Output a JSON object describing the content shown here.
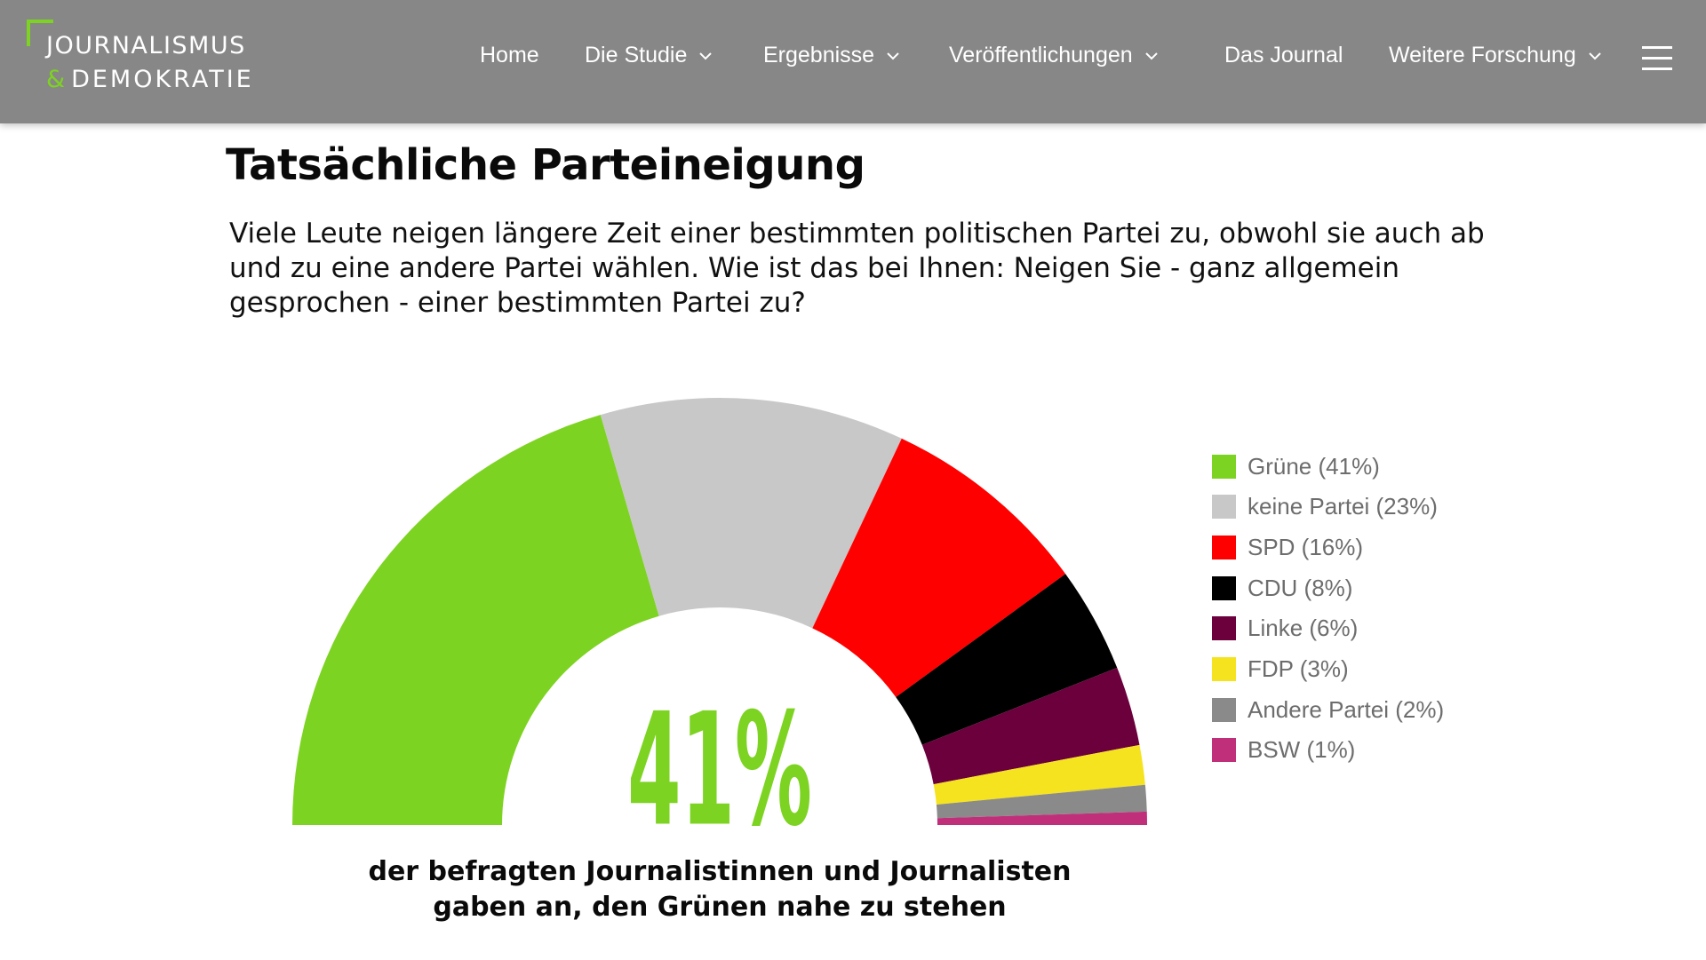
{
  "site": {
    "logo_line1": "JOURNALISMUS",
    "logo_amp": "&",
    "logo_line2": "DEMOKRATIE",
    "accent": "#7dd321"
  },
  "nav": {
    "items": [
      {
        "label": "Home",
        "dropdown": false
      },
      {
        "label": "Die Studie",
        "dropdown": true
      },
      {
        "label": "Ergebnisse",
        "dropdown": true
      },
      {
        "label": "Veröffentlichungen",
        "dropdown": true
      },
      {
        "label": "Das Journal",
        "dropdown": false
      },
      {
        "label": "Weitere Forschung",
        "dropdown": true
      }
    ],
    "menu_icon": "hamburger-icon"
  },
  "page": {
    "title": "Tatsächliche Parteineigung",
    "question": "Viele Leute neigen längere Zeit einer bestimmten politischen Partei zu, obwohl sie auch ab und zu eine andere Partei wählen. Wie ist das bei Ihnen: Neigen Sie - ganz allgemein gesprochen - einer bestimmten Partei zu?",
    "highlight_value": "41%",
    "caption_line1": "der befragten Journalistinnen und Journalisten",
    "caption_line2": "gaben an, den Grünen nahe zu stehen"
  },
  "chart_data": {
    "type": "pie",
    "style": "semicircle-donut",
    "legend_position": "right",
    "slices": [
      {
        "label": "Grüne",
        "value": 41,
        "legend": "Grüne (41%)",
        "color": "#7dd321"
      },
      {
        "label": "keine Partei",
        "value": 23,
        "legend": "keine Partei (23%)",
        "color": "#c8c8c8"
      },
      {
        "label": "SPD",
        "value": 16,
        "legend": "SPD (16%)",
        "color": "#ff0000"
      },
      {
        "label": "CDU",
        "value": 8,
        "legend": "CDU (8%)",
        "color": "#000000"
      },
      {
        "label": "Linke",
        "value": 6,
        "legend": "Linke (6%)",
        "color": "#6b003c"
      },
      {
        "label": "FDP",
        "value": 3,
        "legend": "FDP (3%)",
        "color": "#f5e31f"
      },
      {
        "label": "Andere Partei",
        "value": 2,
        "legend": "Andere Partei (2%)",
        "color": "#8a8a8a"
      },
      {
        "label": "BSW",
        "value": 1,
        "legend": "BSW (1%)",
        "color": "#c0307a"
      }
    ]
  }
}
